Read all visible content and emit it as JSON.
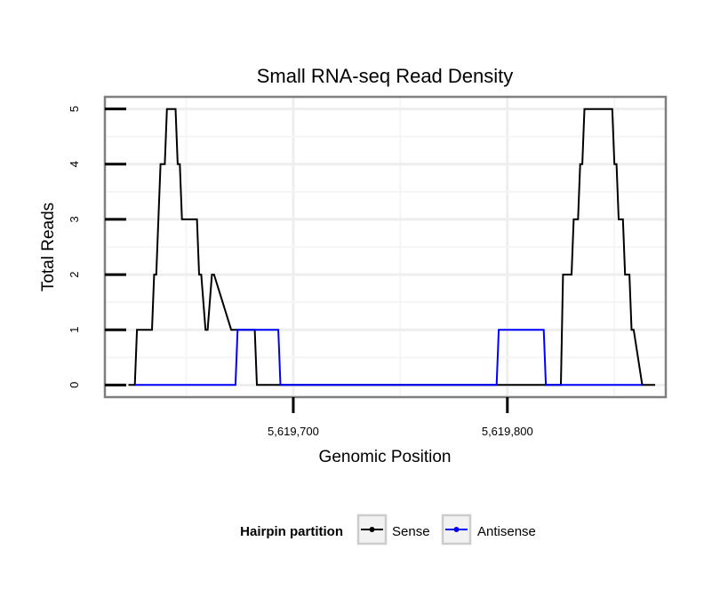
{
  "chart_data": {
    "type": "line",
    "title": "Small RNA-seq Read Density",
    "xlabel": "Genomic Position",
    "ylabel": "Total Reads",
    "xlim": [
      5619612,
      5619874
    ],
    "ylim": [
      -0.22,
      5.22
    ],
    "x_ticks": [
      5619700,
      5619800
    ],
    "x_tick_labels": [
      "5,619,700",
      "5,619,800"
    ],
    "y_ticks": [
      0,
      1,
      2,
      3,
      4,
      5
    ],
    "y_tick_labels": [
      "0",
      "1",
      "2",
      "3",
      "4",
      "5"
    ],
    "grid": true,
    "legend": {
      "title": "Hairpin partition",
      "position": "bottom"
    },
    "series": [
      {
        "name": "Sense",
        "color": "#000000",
        "x": [
          5619623,
          5619626,
          5619627,
          5619634,
          5619635,
          5619636,
          5619637,
          5619638,
          5619640,
          5619641,
          5619643,
          5619645,
          5619646,
          5619647,
          5619648,
          5619654,
          5619655,
          5619656,
          5619657,
          5619659,
          5619660,
          5619662,
          5619663,
          5619671,
          5619682,
          5619683,
          5619824,
          5619825,
          5619826,
          5619830,
          5619831,
          5619832,
          5619833,
          5619834,
          5619835,
          5619836,
          5619837,
          5619849,
          5619850,
          5619851,
          5619852,
          5619854,
          5619855,
          5619856,
          5619857,
          5619858,
          5619859,
          5619863,
          5619869
        ],
        "y": [
          0,
          0,
          1,
          1,
          2,
          2,
          3,
          4,
          4,
          5,
          5,
          5,
          4,
          4,
          3,
          3,
          3,
          2,
          2,
          1,
          1,
          2,
          2,
          1,
          1,
          0,
          0,
          0,
          2,
          2,
          3,
          3,
          3,
          4,
          4,
          5,
          5,
          5,
          4,
          4,
          3,
          3,
          2,
          2,
          2,
          1,
          1,
          0,
          0
        ]
      },
      {
        "name": "Antisense",
        "color": "#0000ff",
        "x": [
          5619626,
          5619673,
          5619674,
          5619693,
          5619694,
          5619795,
          5619796,
          5619817,
          5619818,
          5619863
        ],
        "y": [
          0,
          0,
          1,
          1,
          0,
          0,
          1,
          1,
          0,
          0
        ]
      }
    ]
  }
}
